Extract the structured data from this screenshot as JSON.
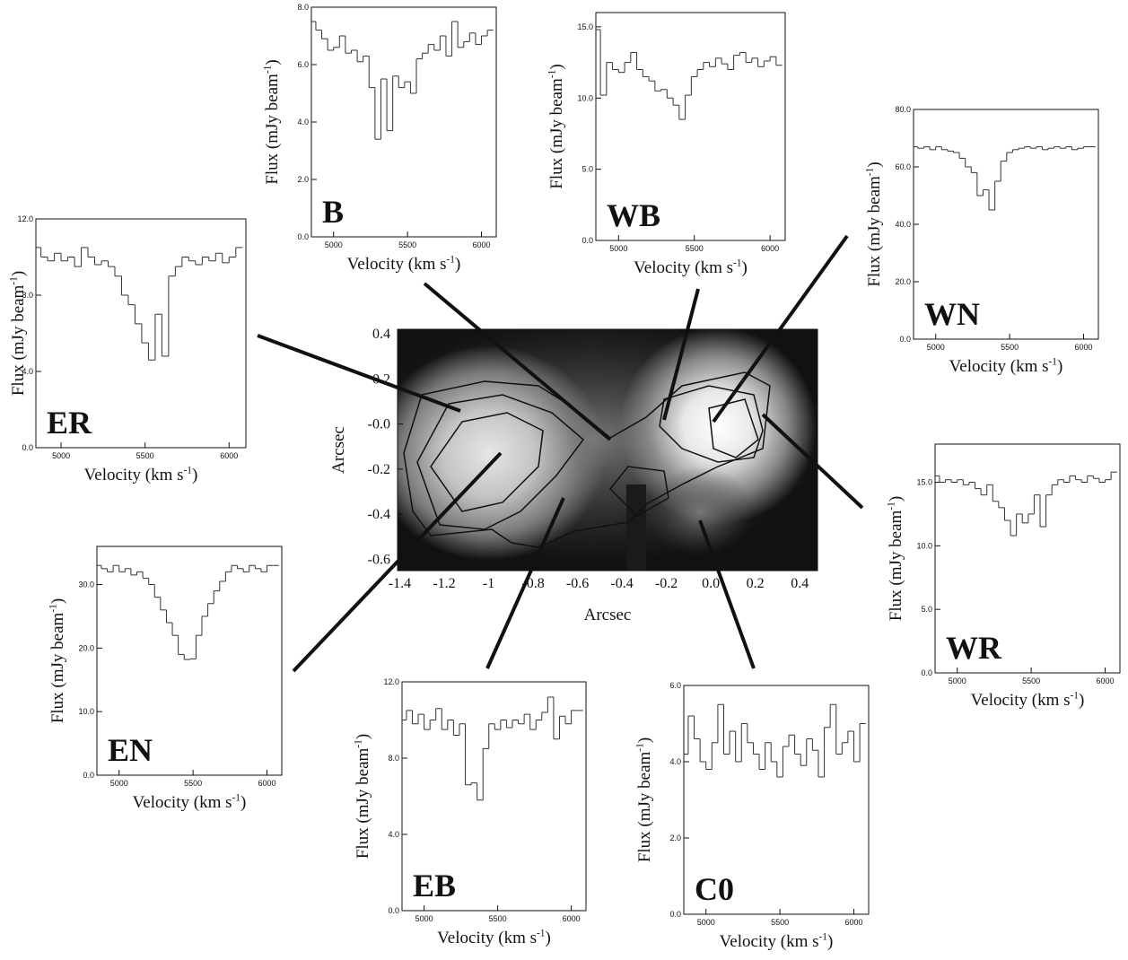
{
  "chart_data": [
    {
      "type": "image",
      "xlabel": "Arcsec",
      "ylabel": "Arcsec",
      "xlim": [
        -1.41,
        0.48
      ],
      "ylim": [
        -0.65,
        0.42
      ],
      "xticks": [
        -1.4,
        -1.2,
        -1.0,
        -0.8,
        -0.6,
        -0.4,
        -0.2,
        {
          "value": 0,
          "label": "0.0"
        },
        0.2,
        0.4
      ],
      "yticks": [
        0.4,
        0.2,
        {
          "value": 0,
          "label": "-0.0"
        },
        -0.2,
        -0.4,
        -0.6
      ]
    },
    {
      "type": "step",
      "label": "B",
      "color": "#333",
      "xlabel": [
        "Velocity (km s",
        "-1",
        ")"
      ],
      "ylabel": [
        "Flux (mJy beam",
        "-1",
        ")"
      ],
      "xlim": [
        4850,
        6100
      ],
      "ylim": [
        0,
        8
      ],
      "xticks": [
        5000,
        5500,
        6000
      ],
      "yticks": [
        {
          "value": 0,
          "label": "0.0"
        },
        {
          "value": 2,
          "label": "2.0"
        },
        {
          "value": 4,
          "label": "4.0"
        },
        {
          "value": 6,
          "label": "6.0"
        },
        {
          "value": 8,
          "label": "8.0"
        }
      ],
      "x": [
        4860,
        4900,
        4940,
        4980,
        5020,
        5060,
        5100,
        5140,
        5180,
        5220,
        5260,
        5300,
        5340,
        5380,
        5420,
        5460,
        5500,
        5540,
        5580,
        5620,
        5660,
        5700,
        5740,
        5780,
        5820,
        5860,
        5900,
        5940,
        5980,
        6020,
        6060
      ],
      "values": [
        7.5,
        7.2,
        6.9,
        6.5,
        6.6,
        7.0,
        6.4,
        6.5,
        6.1,
        6.3,
        5.2,
        3.4,
        5.5,
        3.7,
        5.6,
        5.2,
        5.4,
        5.0,
        6.2,
        6.4,
        6.7,
        6.5,
        7.0,
        6.3,
        7.5,
        6.6,
        6.8,
        7.1,
        6.7,
        7.0,
        7.2
      ]
    },
    {
      "type": "step",
      "label": "WB",
      "color": "#333",
      "xlabel": [
        "Velocity (km s",
        "-1",
        ")"
      ],
      "ylabel": [
        "Flux (mJy beam",
        "-1",
        ")"
      ],
      "xlim": [
        4850,
        6100
      ],
      "ylim": [
        0,
        16
      ],
      "xticks": [
        5000,
        5500,
        6000
      ],
      "yticks": [
        {
          "value": 0,
          "label": "0.0"
        },
        {
          "value": 5,
          "label": "5.0"
        },
        {
          "value": 10,
          "label": "10.0"
        },
        {
          "value": 15,
          "label": "15.0"
        }
      ],
      "x": [
        4860,
        4900,
        4940,
        4980,
        5020,
        5060,
        5100,
        5140,
        5180,
        5220,
        5260,
        5300,
        5340,
        5380,
        5420,
        5460,
        5500,
        5540,
        5580,
        5620,
        5660,
        5700,
        5740,
        5780,
        5820,
        5860,
        5900,
        5940,
        5980,
        6020,
        6060
      ],
      "values": [
        14.8,
        10.2,
        12.5,
        12.0,
        11.8,
        12.5,
        13.2,
        12.0,
        11.5,
        11.2,
        10.5,
        10.6,
        10.0,
        9.5,
        8.5,
        10.2,
        11.5,
        12.0,
        12.5,
        12.2,
        12.8,
        12.4,
        12.0,
        13.0,
        13.2,
        12.5,
        12.8,
        12.2,
        12.6,
        12.9,
        12.3
      ]
    },
    {
      "type": "step",
      "label": "WN",
      "color": "#333",
      "xlabel": [
        "Velocity (km s",
        "-1",
        ")"
      ],
      "ylabel": [
        "Flux (mJy beam",
        "-1",
        ")"
      ],
      "xlim": [
        4850,
        6100
      ],
      "ylim": [
        0,
        80
      ],
      "xticks": [
        5000,
        5500,
        6000
      ],
      "yticks": [
        {
          "value": 0,
          "label": "0.0"
        },
        {
          "value": 20,
          "label": "20.0"
        },
        {
          "value": 40,
          "label": "40.0"
        },
        {
          "value": 60,
          "label": "60.0"
        },
        {
          "value": 80,
          "label": "80.0"
        }
      ],
      "x": [
        4860,
        4900,
        4940,
        4980,
        5020,
        5060,
        5100,
        5140,
        5180,
        5220,
        5260,
        5300,
        5340,
        5380,
        5420,
        5460,
        5500,
        5540,
        5580,
        5620,
        5660,
        5700,
        5740,
        5780,
        5820,
        5860,
        5900,
        5940,
        5980,
        6020,
        6060
      ],
      "values": [
        67,
        66.5,
        67,
        66,
        67,
        66,
        65.5,
        65,
        63,
        60,
        58,
        50,
        52,
        45,
        55,
        62,
        65,
        66,
        66.5,
        67,
        66.5,
        67,
        66,
        66.5,
        67,
        66.5,
        67,
        66,
        66.5,
        67,
        67
      ]
    },
    {
      "type": "step",
      "label": "ER",
      "color": "#333",
      "xlabel": [
        "Velocity (km s",
        "-1",
        ")"
      ],
      "ylabel": [
        "Flux (mJy beam",
        "-1",
        ")"
      ],
      "xlim": [
        4850,
        6100
      ],
      "ylim": [
        0,
        12
      ],
      "xticks": [
        5000,
        5500,
        6000
      ],
      "yticks": [
        {
          "value": 0,
          "label": "0.0"
        },
        {
          "value": 4,
          "label": "4.0"
        },
        {
          "value": 8,
          "label": "8.0"
        },
        {
          "value": 12,
          "label": "12.0"
        }
      ],
      "x": [
        4860,
        4900,
        4940,
        4980,
        5020,
        5060,
        5100,
        5140,
        5180,
        5220,
        5260,
        5300,
        5340,
        5380,
        5420,
        5460,
        5500,
        5540,
        5580,
        5620,
        5660,
        5700,
        5740,
        5780,
        5820,
        5860,
        5900,
        5940,
        5980,
        6020,
        6060
      ],
      "values": [
        10.5,
        10.0,
        9.8,
        10.2,
        9.8,
        10.0,
        9.5,
        10.5,
        10.0,
        9.6,
        9.8,
        9.5,
        9.0,
        8.0,
        7.5,
        6.5,
        5.5,
        4.6,
        7.0,
        4.8,
        9.0,
        9.5,
        10.0,
        9.8,
        9.6,
        10.0,
        9.8,
        10.2,
        9.7,
        10.0,
        10.5
      ]
    },
    {
      "type": "step",
      "label": "WR",
      "color": "#333",
      "xlabel": [
        "Velocity (km s",
        "-1",
        ")"
      ],
      "ylabel": [
        "Flux (mJy beam",
        "-1",
        ")"
      ],
      "xlim": [
        4850,
        6100
      ],
      "ylim": [
        0,
        18
      ],
      "xticks": [
        5000,
        5500,
        6000
      ],
      "yticks": [
        {
          "value": 0,
          "label": "0.0"
        },
        {
          "value": 5,
          "label": "5.0"
        },
        {
          "value": 10,
          "label": "10.0"
        },
        {
          "value": 15,
          "label": "15.0"
        }
      ],
      "x": [
        4860,
        4900,
        4940,
        4980,
        5020,
        5060,
        5100,
        5140,
        5180,
        5220,
        5260,
        5300,
        5340,
        5380,
        5420,
        5460,
        5500,
        5540,
        5580,
        5620,
        5660,
        5700,
        5740,
        5780,
        5820,
        5860,
        5900,
        5940,
        5980,
        6020,
        6060
      ],
      "values": [
        15.5,
        15.0,
        15.2,
        15.0,
        15.2,
        14.8,
        15.0,
        14.5,
        14.0,
        14.8,
        13.5,
        13.0,
        12.0,
        10.8,
        12.5,
        11.8,
        12.5,
        14.0,
        11.5,
        14.0,
        14.8,
        15.2,
        15.0,
        15.5,
        15.2,
        15.0,
        15.5,
        15.3,
        15.0,
        15.2,
        15.8
      ]
    },
    {
      "type": "step",
      "label": "EN",
      "color": "#333",
      "xlabel": [
        "Velocity (km s",
        "-1",
        ")"
      ],
      "ylabel": [
        "Flux (mJy beam",
        "-1",
        ")"
      ],
      "xlim": [
        4850,
        6100
      ],
      "ylim": [
        0,
        36
      ],
      "xticks": [
        5000,
        5500,
        6000
      ],
      "yticks": [
        {
          "value": 0,
          "label": "0.0"
        },
        {
          "value": 10,
          "label": "10.0"
        },
        {
          "value": 20,
          "label": "20.0"
        },
        {
          "value": 30,
          "label": "30.0"
        }
      ],
      "x": [
        4860,
        4900,
        4940,
        4980,
        5020,
        5060,
        5100,
        5140,
        5180,
        5220,
        5260,
        5300,
        5340,
        5380,
        5420,
        5460,
        5500,
        5540,
        5580,
        5620,
        5660,
        5700,
        5740,
        5780,
        5820,
        5860,
        5900,
        5940,
        5980,
        6020,
        6060
      ],
      "values": [
        33,
        32.5,
        32,
        33,
        32,
        32.5,
        31.5,
        32,
        31,
        30,
        28,
        26,
        24,
        22,
        19,
        18.2,
        18.3,
        22,
        25,
        27,
        29,
        30.5,
        32,
        33,
        32.5,
        32,
        33,
        32.5,
        32,
        33,
        33
      ]
    },
    {
      "type": "step",
      "label": "EB",
      "color": "#333",
      "xlabel": [
        "Velocity (km s",
        "-1",
        ")"
      ],
      "ylabel": [
        "Flux (mJy beam",
        "-1",
        ")"
      ],
      "xlim": [
        4850,
        6100
      ],
      "ylim": [
        0,
        12
      ],
      "xticks": [
        5000,
        5500,
        6000
      ],
      "yticks": [
        {
          "value": 0,
          "label": "0.0"
        },
        {
          "value": 4,
          "label": "4.0"
        },
        {
          "value": 8,
          "label": "8.0"
        },
        {
          "value": 12,
          "label": "12.0"
        }
      ],
      "x": [
        4860,
        4900,
        4940,
        4980,
        5020,
        5060,
        5100,
        5140,
        5180,
        5220,
        5260,
        5300,
        5340,
        5380,
        5420,
        5460,
        5500,
        5540,
        5580,
        5620,
        5660,
        5700,
        5740,
        5780,
        5820,
        5860,
        5900,
        5940,
        5980,
        6020,
        6060
      ],
      "values": [
        10,
        10.5,
        9.8,
        10.3,
        9.5,
        10.0,
        10.6,
        9.5,
        10.0,
        9.2,
        9.8,
        6.6,
        6.7,
        5.8,
        8.5,
        9.8,
        9.5,
        10.0,
        9.6,
        10.0,
        9.8,
        10.3,
        9.5,
        10.0,
        10.4,
        11.2,
        9.0,
        10.2,
        9.8,
        10.5,
        10.5
      ]
    },
    {
      "type": "step",
      "label": "C0",
      "color": "#333",
      "xlabel": [
        "Velocity (km s",
        "-1",
        ")"
      ],
      "ylabel": [
        "Flux (mJy beam",
        "-1",
        ")"
      ],
      "xlim": [
        4850,
        6100
      ],
      "ylim": [
        0,
        6
      ],
      "xticks": [
        5000,
        5500,
        6000
      ],
      "yticks": [
        {
          "value": 0,
          "label": "0.0"
        },
        {
          "value": 2,
          "label": "2.0"
        },
        {
          "value": 4,
          "label": "4.0"
        },
        {
          "value": 6,
          "label": "6.0"
        }
      ],
      "x": [
        4860,
        4900,
        4940,
        4980,
        5020,
        5060,
        5100,
        5140,
        5180,
        5220,
        5260,
        5300,
        5340,
        5380,
        5420,
        5460,
        5500,
        5540,
        5580,
        5620,
        5660,
        5700,
        5740,
        5780,
        5820,
        5860,
        5900,
        5940,
        5980,
        6020,
        6060
      ],
      "values": [
        4.2,
        5.2,
        4.6,
        4.0,
        3.8,
        4.5,
        5.5,
        4.2,
        4.8,
        4.0,
        5.0,
        4.5,
        4.2,
        3.8,
        4.5,
        4.0,
        3.6,
        4.4,
        4.7,
        4.2,
        3.9,
        4.6,
        4.3,
        3.6,
        4.9,
        5.5,
        4.2,
        4.5,
        4.8,
        4.0,
        5.0
      ]
    }
  ]
}
